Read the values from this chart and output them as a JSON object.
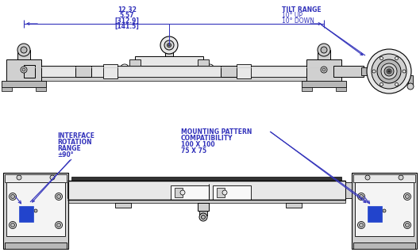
{
  "bg_color": "#ffffff",
  "line_color": "#000000",
  "blue_color": "#3333bb",
  "dim_text_top": [
    "12.32",
    "5.57",
    "[312.9]",
    "[141.5]"
  ],
  "tilt_text": [
    "TILT RANGE",
    "10° UP",
    "10° DOWN"
  ],
  "interface_text": [
    "INTERFACE",
    "ROTATION",
    "RANGE",
    "±90°"
  ],
  "mounting_text": [
    "MOUNTING PATTERN",
    "COMPATIBILITY",
    "100 X 100",
    "75 X 75"
  ],
  "fig_width": 5.29,
  "fig_height": 3.18
}
